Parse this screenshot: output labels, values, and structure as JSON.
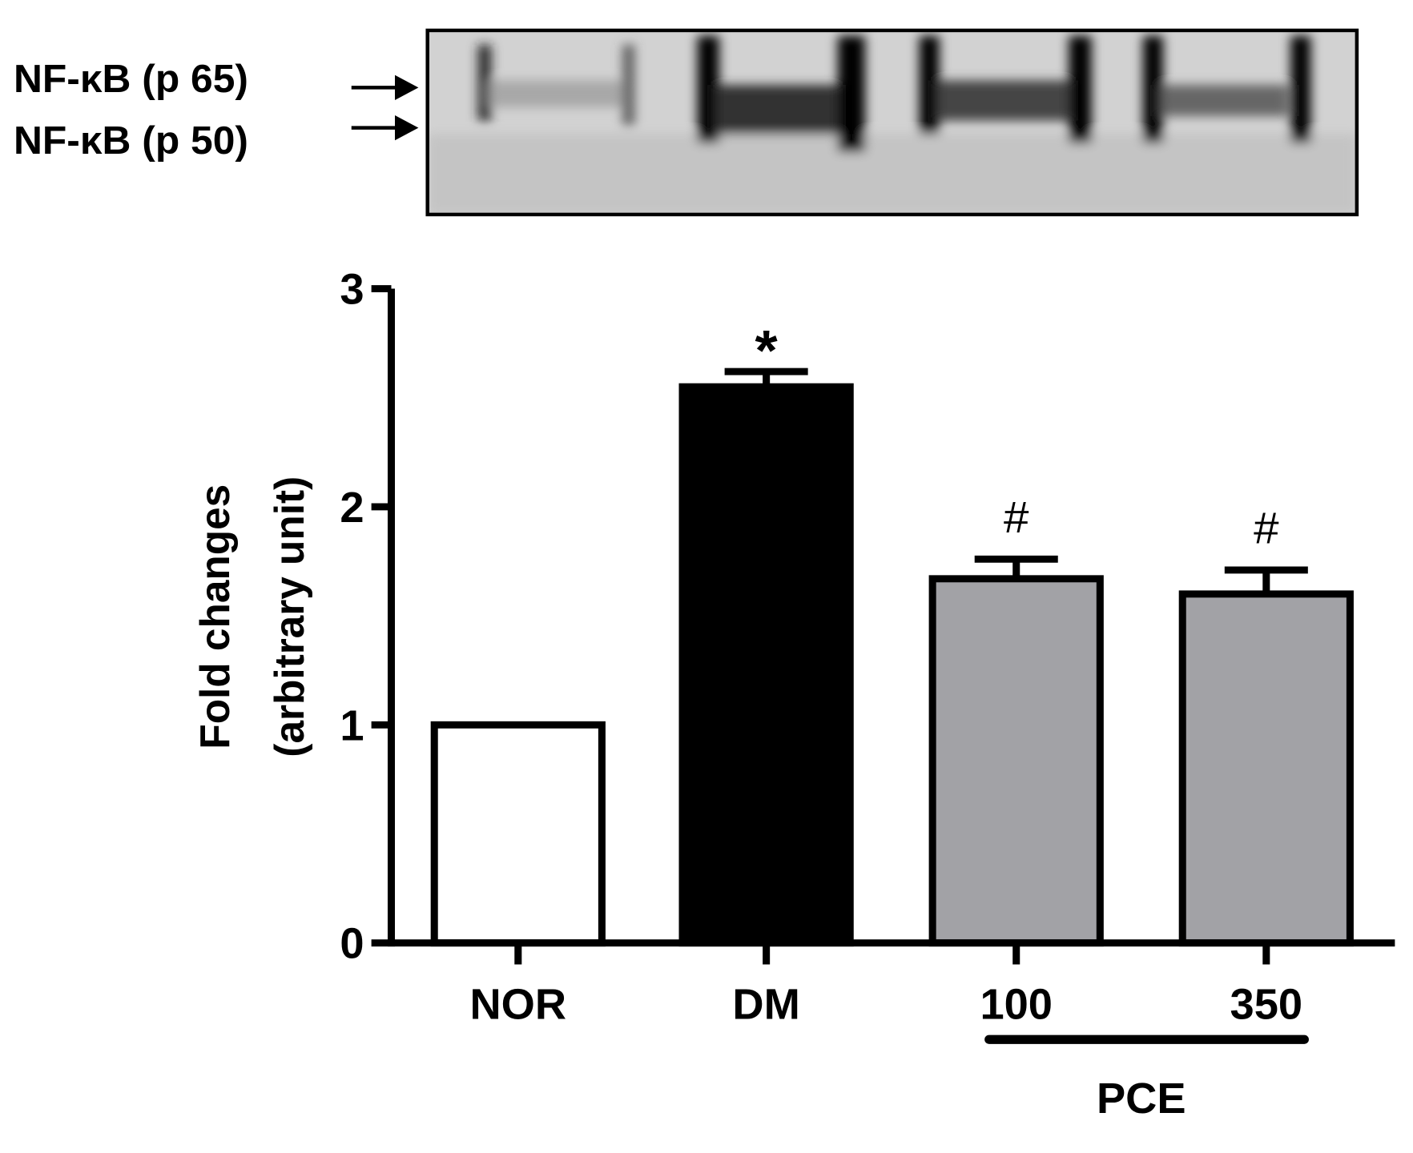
{
  "blot": {
    "labels": [
      "NF-κB (p 65)",
      "NF-κB (p 50)"
    ]
  },
  "chart_data": {
    "type": "bar",
    "ylabel": [
      "Fold changes",
      "(arbitrary unit)"
    ],
    "categories": [
      "NOR",
      "DM",
      "100",
      "350"
    ],
    "values": [
      1.0,
      2.55,
      1.67,
      1.6
    ],
    "errors": [
      null,
      0.07,
      0.09,
      0.11
    ],
    "colors": [
      "#ffffff",
      "#000000",
      "#a2a2a6",
      "#a2a2a6"
    ],
    "annotations": [
      null,
      "*",
      "#",
      "#"
    ],
    "group_label": "PCE",
    "ylim": [
      0,
      3
    ],
    "yticks": [
      0,
      1,
      2,
      3
    ],
    "grid": false
  }
}
